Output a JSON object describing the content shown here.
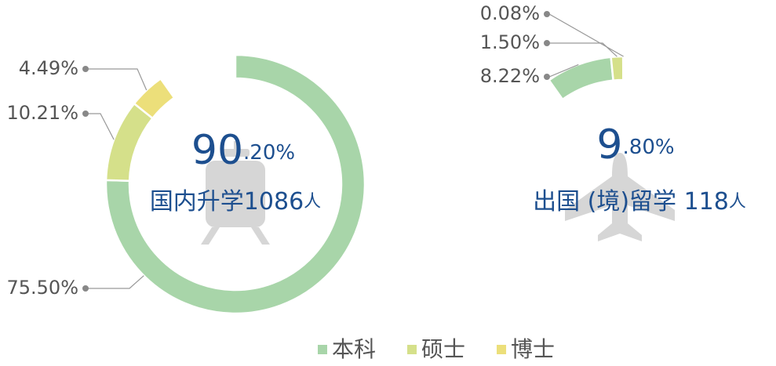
{
  "legend": {
    "categories": [
      "本科",
      "硕士",
      "博士"
    ],
    "colors": [
      "#a8d5a9",
      "#d5e08a",
      "#ecdf7a"
    ]
  },
  "chart_data": [
    {
      "type": "donut",
      "title": "国内升学1086人",
      "total": 90.2,
      "total_label": "90.20%",
      "values": [
        75.5,
        10.21,
        4.49
      ],
      "value_labels": [
        "75.50%",
        "10.21%",
        "4.49%"
      ]
    },
    {
      "type": "donut",
      "title": "出国 (境)留学 118人",
      "total": 9.8,
      "total_label": "9.80%",
      "values": [
        8.22,
        1.5,
        0.08
      ],
      "value_labels": [
        "8.22%",
        "1.50%",
        "0.08%"
      ]
    }
  ]
}
